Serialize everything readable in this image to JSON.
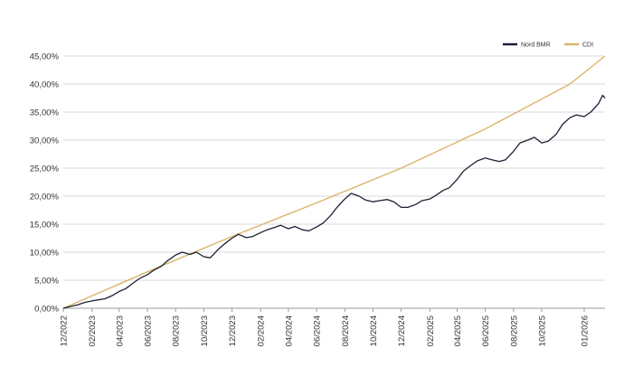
{
  "chart_data": {
    "type": "line",
    "title": "",
    "xlabel": "",
    "ylabel": "",
    "x_tick_labels": [
      "12/2022",
      "02/2023",
      "04/2023",
      "06/2023",
      "08/2023",
      "10/2023",
      "12/2023",
      "02/2024",
      "04/2024",
      "06/2024",
      "08/2024",
      "10/2024",
      "12/2024",
      "02/2025",
      "04/2025",
      "06/2025",
      "08/2025",
      "10/2025",
      "01/2026"
    ],
    "y_tick_labels": [
      "0,00%",
      "5,00%",
      "10,00%",
      "15,00%",
      "20,00%",
      "25,00%",
      "30,00%",
      "35,00%",
      "40,00%",
      "45,00%"
    ],
    "ylim": [
      0,
      45
    ],
    "xlim": [
      "2022-12-01",
      "2026-02-15"
    ],
    "grid": true,
    "legend_position": "top-right",
    "series": [
      {
        "name": "Nord BMR",
        "color": "#1c2035",
        "points": [
          [
            "2022-12-01",
            0.0
          ],
          [
            "2022-12-15",
            0.3
          ],
          [
            "2023-01-01",
            0.6
          ],
          [
            "2023-01-15",
            1.0
          ],
          [
            "2023-02-01",
            1.3
          ],
          [
            "2023-02-15",
            1.5
          ],
          [
            "2023-03-01",
            1.7
          ],
          [
            "2023-03-15",
            2.2
          ],
          [
            "2023-04-01",
            3.0
          ],
          [
            "2023-04-15",
            3.5
          ],
          [
            "2023-05-01",
            4.5
          ],
          [
            "2023-05-15",
            5.3
          ],
          [
            "2023-06-01",
            6.0
          ],
          [
            "2023-06-15",
            6.8
          ],
          [
            "2023-07-01",
            7.5
          ],
          [
            "2023-07-15",
            8.5
          ],
          [
            "2023-08-01",
            9.5
          ],
          [
            "2023-08-15",
            10.0
          ],
          [
            "2023-09-01",
            9.6
          ],
          [
            "2023-09-15",
            10.0
          ],
          [
            "2023-10-01",
            9.2
          ],
          [
            "2023-10-15",
            9.0
          ],
          [
            "2023-11-01",
            10.5
          ],
          [
            "2023-11-15",
            11.5
          ],
          [
            "2023-12-01",
            12.5
          ],
          [
            "2023-12-15",
            13.2
          ],
          [
            "2024-01-01",
            12.6
          ],
          [
            "2024-01-15",
            12.8
          ],
          [
            "2024-02-01",
            13.5
          ],
          [
            "2024-02-15",
            14.0
          ],
          [
            "2024-03-01",
            14.4
          ],
          [
            "2024-03-15",
            14.8
          ],
          [
            "2024-04-01",
            14.2
          ],
          [
            "2024-04-15",
            14.6
          ],
          [
            "2024-05-01",
            14.0
          ],
          [
            "2024-05-15",
            13.8
          ],
          [
            "2024-06-01",
            14.5
          ],
          [
            "2024-06-15",
            15.2
          ],
          [
            "2024-07-01",
            16.5
          ],
          [
            "2024-07-15",
            18.0
          ],
          [
            "2024-08-01",
            19.5
          ],
          [
            "2024-08-15",
            20.5
          ],
          [
            "2024-09-01",
            20.0
          ],
          [
            "2024-09-15",
            19.3
          ],
          [
            "2024-10-01",
            19.0
          ],
          [
            "2024-10-15",
            19.2
          ],
          [
            "2024-11-01",
            19.4
          ],
          [
            "2024-11-15",
            19.0
          ],
          [
            "2024-12-01",
            18.0
          ],
          [
            "2024-12-15",
            18.0
          ],
          [
            "2025-01-01",
            18.5
          ],
          [
            "2025-01-15",
            19.2
          ],
          [
            "2025-02-01",
            19.5
          ],
          [
            "2025-02-15",
            20.2
          ],
          [
            "2025-03-01",
            21.0
          ],
          [
            "2025-03-15",
            21.5
          ],
          [
            "2025-04-01",
            23.0
          ],
          [
            "2025-04-15",
            24.5
          ],
          [
            "2025-05-01",
            25.5
          ],
          [
            "2025-05-15",
            26.3
          ],
          [
            "2025-06-01",
            26.8
          ],
          [
            "2025-06-15",
            26.5
          ],
          [
            "2025-07-01",
            26.2
          ],
          [
            "2025-07-15",
            26.5
          ],
          [
            "2025-08-01",
            28.0
          ],
          [
            "2025-08-15",
            29.5
          ],
          [
            "2025-09-01",
            30.0
          ],
          [
            "2025-09-15",
            30.5
          ],
          [
            "2025-10-01",
            29.5
          ],
          [
            "2025-10-15",
            29.8
          ],
          [
            "2025-11-01",
            31.0
          ],
          [
            "2025-11-15",
            32.8
          ],
          [
            "2025-12-01",
            34.0
          ],
          [
            "2025-12-15",
            34.5
          ],
          [
            "2026-01-01",
            34.2
          ],
          [
            "2026-01-15",
            35.0
          ],
          [
            "2026-02-01",
            36.5
          ],
          [
            "2026-02-10",
            38.0
          ],
          [
            "2026-02-15",
            37.5
          ]
        ]
      },
      {
        "name": "CDI",
        "color": "#d9b56a",
        "points": [
          [
            "2022-12-01",
            0.0
          ],
          [
            "2023-06-01",
            6.5
          ],
          [
            "2023-12-01",
            12.8
          ],
          [
            "2024-06-01",
            18.8
          ],
          [
            "2024-12-01",
            25.0
          ],
          [
            "2025-06-01",
            32.0
          ],
          [
            "2025-12-01",
            40.0
          ],
          [
            "2026-02-15",
            45.0
          ]
        ]
      }
    ]
  }
}
